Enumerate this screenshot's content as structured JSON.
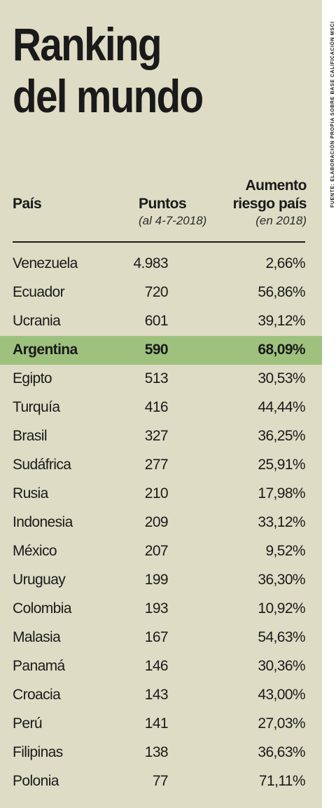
{
  "title_line1": "Ranking",
  "title_line2": "del mundo",
  "source": "FUENTE: ELABORACIÓN PROPIA SOBRE BASE CALIFICACIÓN MSCI",
  "columns": {
    "country": "País",
    "points": "Puntos",
    "points_sub": "(al 4-7-2018)",
    "increase_line1": "Aumento",
    "increase_line2": "riesgo país",
    "increase_sub": "(en 2018)"
  },
  "highlight_color": "#9ec27e",
  "rows": [
    {
      "country": "Venezuela",
      "points": "4.983",
      "increase": "2,66%"
    },
    {
      "country": "Ecuador",
      "points": "720",
      "increase": "56,86%"
    },
    {
      "country": "Ucrania",
      "points": "601",
      "increase": "39,12%"
    },
    {
      "country": "Argentina",
      "points": "590",
      "increase": "68,09%",
      "highlighted": true
    },
    {
      "country": "Egipto",
      "points": "513",
      "increase": "30,53%"
    },
    {
      "country": "Turquía",
      "points": "416",
      "increase": "44,44%"
    },
    {
      "country": "Brasil",
      "points": "327",
      "increase": "36,25%"
    },
    {
      "country": "Sudáfrica",
      "points": "277",
      "increase": "25,91%"
    },
    {
      "country": "Rusia",
      "points": "210",
      "increase": "17,98%"
    },
    {
      "country": "Indonesia",
      "points": "209",
      "increase": "33,12%"
    },
    {
      "country": "México",
      "points": "207",
      "increase": "9,52%"
    },
    {
      "country": "Uruguay",
      "points": "199",
      "increase": "36,30%"
    },
    {
      "country": "Colombia",
      "points": "193",
      "increase": "10,92%"
    },
    {
      "country": "Malasia",
      "points": "167",
      "increase": "54,63%"
    },
    {
      "country": "Panamá",
      "points": "146",
      "increase": "30,36%"
    },
    {
      "country": "Croacia",
      "points": "143",
      "increase": "43,00%"
    },
    {
      "country": "Perú",
      "points": "141",
      "increase": "27,03%"
    },
    {
      "country": "Filipinas",
      "points": "138",
      "increase": "36,63%"
    },
    {
      "country": "Polonia",
      "points": "77",
      "increase": "71,11%"
    }
  ]
}
